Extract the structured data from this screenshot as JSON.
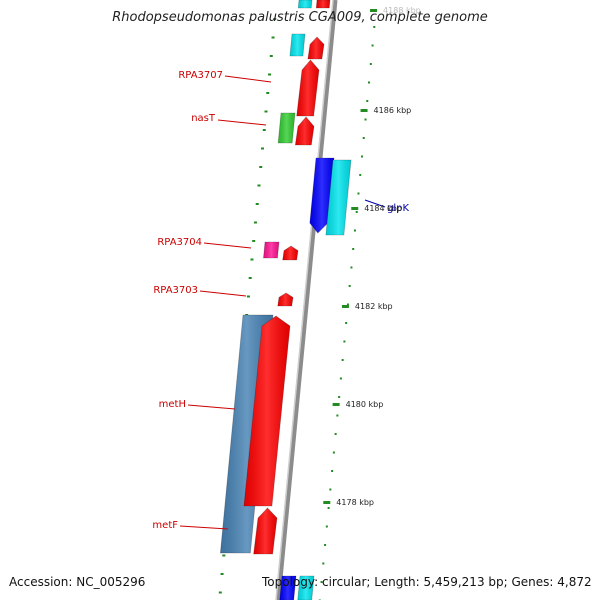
{
  "header": {
    "title": "Rhodopseudomonas palustris CGA009, complete genome"
  },
  "footer": {
    "accession": "Accession: NC_005296",
    "summary": "Topology: circular; Length: 5,459,213 bp; Genes: 4,872"
  },
  "ruler": {
    "unit_suffix": " kbp",
    "ticks": [
      "4188 kbp",
      "4186 kbp",
      "4184 kbp",
      "4182 kbp",
      "4180 kbp",
      "4178 kbp"
    ]
  },
  "genes": [
    {
      "label": "RPA3707",
      "color": "#cc0000"
    },
    {
      "label": "nasT",
      "color": "#cc0000"
    },
    {
      "label": "glpK",
      "color": "#0000aa"
    },
    {
      "label": "RPA3704",
      "color": "#cc0000"
    },
    {
      "label": "RPA3703",
      "color": "#cc0000"
    },
    {
      "label": "metH",
      "color": "#cc0000"
    },
    {
      "label": "metF",
      "color": "#cc0000"
    }
  ],
  "colors": {
    "forward_cds": "#ff0000",
    "reverse_cds": "#00e5ee",
    "reverse_cds_dark": "#0000ff",
    "blue_gene": "#4682b4",
    "green_gene": "#32cd32",
    "pink_gene": "#ff1493",
    "backbone": "#8c8c8c",
    "tick_marks": "#228b22"
  }
}
